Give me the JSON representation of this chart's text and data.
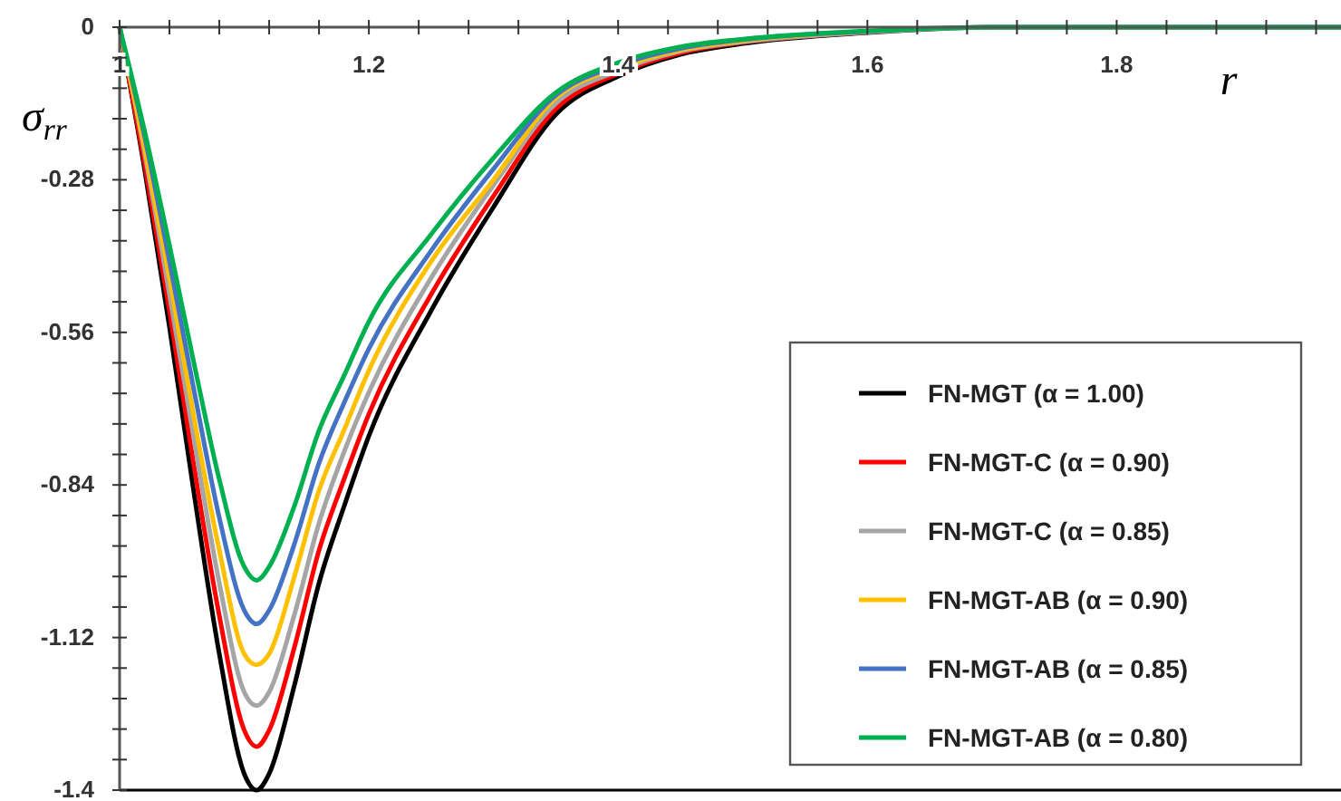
{
  "chart_data": {
    "type": "line",
    "xlabel": "r",
    "ylabel": "σ$_{rr}$",
    "x": [
      1,
      1.02,
      1.04,
      1.06,
      1.08,
      1.1,
      1.11,
      1.12,
      1.14,
      1.16,
      1.18,
      1.2,
      1.25,
      1.3,
      1.35,
      1.4,
      1.45,
      1.5,
      1.6,
      1.7,
      1.8,
      1.98
    ],
    "series": [
      {
        "name": "FN-MGT (α = 1.00)",
        "color": "#000000",
        "values": [
          0,
          -0.26,
          -0.55,
          -0.86,
          -1.15,
          -1.37,
          -1.4,
          -1.37,
          -1.21,
          -1.02,
          -0.88,
          -0.75,
          -0.52,
          -0.33,
          -0.16,
          -0.09,
          -0.05,
          -0.03,
          -0.01,
          0,
          0,
          0
        ]
      },
      {
        "name": "FN-MGT-C (α = 0.90)",
        "color": "#ff0000",
        "values": [
          0,
          -0.25,
          -0.52,
          -0.81,
          -1.08,
          -1.29,
          -1.32,
          -1.29,
          -1.14,
          -0.96,
          -0.83,
          -0.71,
          -0.49,
          -0.31,
          -0.15,
          -0.085,
          -0.047,
          -0.028,
          -0.009,
          null,
          null,
          null
        ]
      },
      {
        "name": "FN-MGT-C (α = 0.85)",
        "color": "#a5a5a5",
        "values": [
          0,
          -0.23,
          -0.49,
          -0.76,
          -1.02,
          -1.22,
          -1.245,
          -1.22,
          -1.08,
          -0.91,
          -0.78,
          -0.67,
          -0.46,
          -0.29,
          -0.14,
          -0.08,
          -0.044,
          -0.027,
          -0.009,
          0,
          0,
          0
        ]
      },
      {
        "name": "FN-MGT-AB (α = 0.90)",
        "color": "#ffc000",
        "values": [
          0,
          -0.22,
          -0.46,
          -0.72,
          -0.96,
          -1.15,
          -1.17,
          -1.15,
          -1.01,
          -0.85,
          -0.74,
          -0.63,
          -0.43,
          -0.28,
          -0.13,
          -0.075,
          -0.042,
          -0.025,
          -0.008,
          null,
          null,
          null
        ]
      },
      {
        "name": "FN-MGT-AB (α = 0.85)",
        "color": "#4472c4",
        "values": [
          0,
          -0.2,
          -0.43,
          -0.67,
          -0.9,
          -1.07,
          -1.095,
          -1.07,
          -0.95,
          -0.8,
          -0.69,
          -0.59,
          -0.41,
          -0.26,
          -0.125,
          -0.07,
          -0.039,
          -0.023,
          -0.008,
          null,
          null,
          null
        ]
      },
      {
        "name": "FN-MGT-AB (α = 0.80)",
        "color": "#00b050",
        "values": [
          0,
          -0.19,
          -0.4,
          -0.62,
          -0.83,
          -0.99,
          -1.015,
          -0.99,
          -0.88,
          -0.74,
          -0.64,
          -0.54,
          -0.38,
          -0.24,
          -0.12,
          -0.065,
          -0.036,
          -0.022,
          -0.007,
          0,
          0,
          0
        ]
      }
    ],
    "xlim": [
      1,
      1.98
    ],
    "ylim": [
      -1.4,
      0
    ],
    "xticks": [
      1,
      {
        "value": 1.04,
        "label": null
      },
      {
        "value": 1.08,
        "label": null
      },
      {
        "value": 1.12,
        "label": null
      },
      {
        "value": 1.16,
        "label": null
      },
      1.2,
      {
        "value": 1.24,
        "label": null
      },
      {
        "value": 1.28,
        "label": null
      },
      {
        "value": 1.32,
        "label": null
      },
      {
        "value": 1.36,
        "label": null
      },
      1.4,
      {
        "value": 1.44,
        "label": null
      },
      {
        "value": 1.48,
        "label": null
      },
      {
        "value": 1.52,
        "label": null
      },
      {
        "value": 1.56,
        "label": null
      },
      1.6,
      {
        "value": 1.64,
        "label": null
      },
      {
        "value": 1.68,
        "label": null
      },
      {
        "value": 1.72,
        "label": null
      },
      {
        "value": 1.76,
        "label": null
      },
      1.8,
      {
        "value": 1.84,
        "label": null
      },
      {
        "value": 1.88,
        "label": null
      },
      {
        "value": 1.92,
        "label": null
      },
      {
        "value": 1.96,
        "label": null
      }
    ],
    "yticks": [
      0,
      {
        "value": -0.056,
        "label": null
      },
      {
        "value": -0.112,
        "label": null
      },
      {
        "value": -0.168,
        "label": null
      },
      {
        "value": -0.224,
        "label": null
      },
      -0.28,
      {
        "value": -0.336,
        "label": null
      },
      {
        "value": -0.392,
        "label": null
      },
      {
        "value": -0.448,
        "label": null
      },
      {
        "value": -0.504,
        "label": null
      },
      -0.56,
      {
        "value": -0.616,
        "label": null
      },
      {
        "value": -0.672,
        "label": null
      },
      {
        "value": -0.728,
        "label": null
      },
      {
        "value": -0.784,
        "label": null
      },
      -0.84,
      {
        "value": -0.896,
        "label": null
      },
      {
        "value": -0.952,
        "label": null
      },
      {
        "value": -1.008,
        "label": null
      },
      {
        "value": -1.064,
        "label": null
      },
      -1.12,
      {
        "value": -1.176,
        "label": null
      },
      {
        "value": -1.232,
        "label": null
      },
      {
        "value": -1.288,
        "label": null
      },
      {
        "value": -1.344,
        "label": null
      },
      -1.4
    ],
    "grid": false,
    "legend": "bottom right",
    "line_style": "solid",
    "marker": "none"
  }
}
